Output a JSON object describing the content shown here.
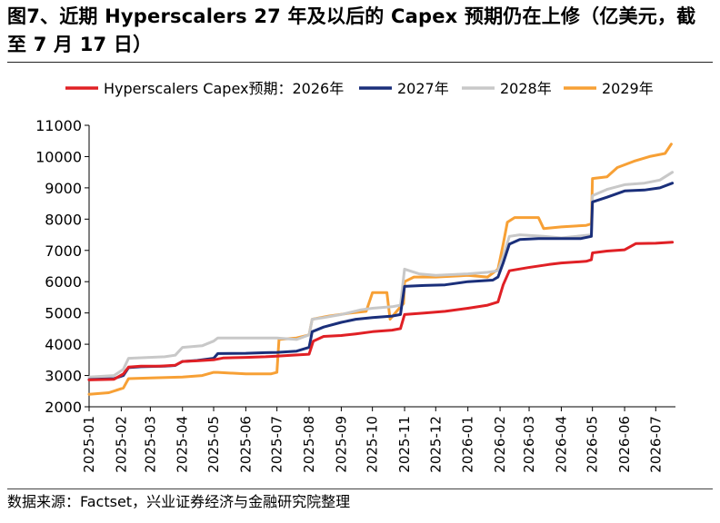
{
  "header": {
    "title": "图7、近期 Hyperscalers 27 年及以后的 Capex 预期仍在上修（亿美元，截至 7 月 17 日）"
  },
  "footer": {
    "source": "数据来源：Factset，兴业证券经济与金融研究院整理"
  },
  "colors": {
    "series_2026": "#e02025",
    "series_2027": "#1a2f7a",
    "series_2028": "#c8c8c8",
    "series_2029": "#f7a035",
    "axis": "#000000"
  },
  "chart_data": {
    "type": "line",
    "title": "",
    "xlabel": "",
    "ylabel": "",
    "x_type": "date",
    "xlim": [
      "2025-01-01",
      "2026-07-20"
    ],
    "ylim": [
      2000,
      11000
    ],
    "yticks": [
      2000,
      3000,
      4000,
      5000,
      6000,
      7000,
      8000,
      9000,
      10000,
      11000
    ],
    "xtick_labels": [
      "2025-01",
      "2025-02",
      "2025-03",
      "2025-04",
      "2025-05",
      "2025-06",
      "2025-07",
      "2025-08",
      "2025-09",
      "2025-10",
      "2025-11",
      "2025-12",
      "2026-01",
      "2026-02",
      "2026-03",
      "2026-04",
      "2026-05",
      "2026-06",
      "2026-07"
    ],
    "grid": false,
    "legend_position": "top",
    "series": [
      {
        "name": "Hyperscalers Capex预期：2026年",
        "color": "#e02025",
        "points": [
          [
            "2025-01-01",
            2860
          ],
          [
            "2025-01-25",
            2880
          ],
          [
            "2025-02-03",
            3050
          ],
          [
            "2025-02-08",
            3270
          ],
          [
            "2025-02-20",
            3300
          ],
          [
            "2025-03-10",
            3300
          ],
          [
            "2025-03-25",
            3330
          ],
          [
            "2025-04-01",
            3450
          ],
          [
            "2025-04-15",
            3470
          ],
          [
            "2025-05-01",
            3500
          ],
          [
            "2025-05-10",
            3560
          ],
          [
            "2025-06-01",
            3580
          ],
          [
            "2025-06-20",
            3600
          ],
          [
            "2025-07-01",
            3620
          ],
          [
            "2025-07-15",
            3650
          ],
          [
            "2025-08-01",
            3680
          ],
          [
            "2025-08-05",
            4100
          ],
          [
            "2025-08-15",
            4250
          ],
          [
            "2025-09-01",
            4280
          ],
          [
            "2025-09-15",
            4330
          ],
          [
            "2025-10-01",
            4400
          ],
          [
            "2025-10-20",
            4450
          ],
          [
            "2025-10-28",
            4500
          ],
          [
            "2025-11-01",
            4950
          ],
          [
            "2025-11-20",
            5000
          ],
          [
            "2025-12-10",
            5050
          ],
          [
            "2026-01-01",
            5150
          ],
          [
            "2026-01-20",
            5250
          ],
          [
            "2026-01-30",
            5350
          ],
          [
            "2026-02-04",
            5900
          ],
          [
            "2026-02-10",
            6350
          ],
          [
            "2026-02-28",
            6450
          ],
          [
            "2026-03-20",
            6550
          ],
          [
            "2026-04-01",
            6600
          ],
          [
            "2026-04-25",
            6650
          ],
          [
            "2026-04-30",
            6700
          ],
          [
            "2026-05-01",
            6920
          ],
          [
            "2026-05-15",
            6980
          ],
          [
            "2026-06-01",
            7020
          ],
          [
            "2026-06-12",
            7220
          ],
          [
            "2026-07-01",
            7230
          ],
          [
            "2026-07-17",
            7260
          ]
        ]
      },
      {
        "name": "2027年",
        "color": "#1a2f7a",
        "points": [
          [
            "2025-01-01",
            2870
          ],
          [
            "2025-01-25",
            2900
          ],
          [
            "2025-02-03",
            3000
          ],
          [
            "2025-02-08",
            3250
          ],
          [
            "2025-02-20",
            3280
          ],
          [
            "2025-03-15",
            3300
          ],
          [
            "2025-03-25",
            3320
          ],
          [
            "2025-04-01",
            3450
          ],
          [
            "2025-04-15",
            3480
          ],
          [
            "2025-05-01",
            3550
          ],
          [
            "2025-05-05",
            3700
          ],
          [
            "2025-06-01",
            3710
          ],
          [
            "2025-06-20",
            3730
          ],
          [
            "2025-07-01",
            3740
          ],
          [
            "2025-07-20",
            3780
          ],
          [
            "2025-08-01",
            3900
          ],
          [
            "2025-08-04",
            4400
          ],
          [
            "2025-08-15",
            4550
          ],
          [
            "2025-09-01",
            4700
          ],
          [
            "2025-09-15",
            4800
          ],
          [
            "2025-10-01",
            4850
          ],
          [
            "2025-10-20",
            4900
          ],
          [
            "2025-10-28",
            4950
          ],
          [
            "2025-11-01",
            5850
          ],
          [
            "2025-11-20",
            5880
          ],
          [
            "2025-12-10",
            5900
          ],
          [
            "2026-01-01",
            6000
          ],
          [
            "2026-01-25",
            6050
          ],
          [
            "2026-01-30",
            6150
          ],
          [
            "2026-02-04",
            6600
          ],
          [
            "2026-02-10",
            7200
          ],
          [
            "2026-02-20",
            7350
          ],
          [
            "2026-03-10",
            7380
          ],
          [
            "2026-04-01",
            7380
          ],
          [
            "2026-04-20",
            7380
          ],
          [
            "2026-04-30",
            7450
          ],
          [
            "2026-05-01",
            8550
          ],
          [
            "2026-05-15",
            8700
          ],
          [
            "2026-06-01",
            8900
          ],
          [
            "2026-06-20",
            8930
          ],
          [
            "2026-07-05",
            9000
          ],
          [
            "2026-07-17",
            9150
          ]
        ]
      },
      {
        "name": "2028年",
        "color": "#c8c8c8",
        "points": [
          [
            "2025-01-01",
            2950
          ],
          [
            "2025-01-25",
            3000
          ],
          [
            "2025-02-03",
            3200
          ],
          [
            "2025-02-08",
            3550
          ],
          [
            "2025-03-15",
            3600
          ],
          [
            "2025-03-25",
            3650
          ],
          [
            "2025-04-01",
            3900
          ],
          [
            "2025-04-20",
            3950
          ],
          [
            "2025-05-01",
            4100
          ],
          [
            "2025-05-05",
            4200
          ],
          [
            "2025-06-01",
            4200
          ],
          [
            "2025-07-01",
            4200
          ],
          [
            "2025-07-20",
            4150
          ],
          [
            "2025-08-01",
            4300
          ],
          [
            "2025-08-04",
            4800
          ],
          [
            "2025-08-15",
            4850
          ],
          [
            "2025-09-01",
            4950
          ],
          [
            "2025-09-20",
            5100
          ],
          [
            "2025-10-01",
            5150
          ],
          [
            "2025-10-20",
            5200
          ],
          [
            "2025-10-28",
            5250
          ],
          [
            "2025-11-01",
            6400
          ],
          [
            "2025-11-15",
            6250
          ],
          [
            "2025-12-01",
            6200
          ],
          [
            "2026-01-01",
            6250
          ],
          [
            "2026-01-20",
            6300
          ],
          [
            "2026-01-30",
            6350
          ],
          [
            "2026-02-04",
            6800
          ],
          [
            "2026-02-10",
            7450
          ],
          [
            "2026-02-20",
            7500
          ],
          [
            "2026-03-15",
            7450
          ],
          [
            "2026-04-01",
            7400
          ],
          [
            "2026-04-30",
            7500
          ],
          [
            "2026-05-01",
            8750
          ],
          [
            "2026-05-15",
            8950
          ],
          [
            "2026-06-01",
            9100
          ],
          [
            "2026-06-20",
            9150
          ],
          [
            "2026-07-05",
            9250
          ],
          [
            "2026-07-17",
            9500
          ]
        ]
      },
      {
        "name": "2029年",
        "color": "#f7a035",
        "points": [
          [
            "2025-01-01",
            2400
          ],
          [
            "2025-01-20",
            2450
          ],
          [
            "2025-02-03",
            2600
          ],
          [
            "2025-02-08",
            2900
          ],
          [
            "2025-03-01",
            2920
          ],
          [
            "2025-04-01",
            2950
          ],
          [
            "2025-04-20",
            3000
          ],
          [
            "2025-05-01",
            3100
          ],
          [
            "2025-05-05",
            3100
          ],
          [
            "2025-06-01",
            3050
          ],
          [
            "2025-06-25",
            3050
          ],
          [
            "2025-07-01",
            3100
          ],
          [
            "2025-07-03",
            4150
          ],
          [
            "2025-07-20",
            4200
          ],
          [
            "2025-08-01",
            4300
          ],
          [
            "2025-08-04",
            4800
          ],
          [
            "2025-08-20",
            4900
          ],
          [
            "2025-09-10",
            5000
          ],
          [
            "2025-09-25",
            5050
          ],
          [
            "2025-10-01",
            5650
          ],
          [
            "2025-10-15",
            5650
          ],
          [
            "2025-10-18",
            4800
          ],
          [
            "2025-10-28",
            5200
          ],
          [
            "2025-10-31",
            5300
          ],
          [
            "2025-11-01",
            6000
          ],
          [
            "2025-11-10",
            6150
          ],
          [
            "2025-12-01",
            6150
          ],
          [
            "2026-01-01",
            6200
          ],
          [
            "2026-01-20",
            6150
          ],
          [
            "2026-01-30",
            6400
          ],
          [
            "2026-02-04",
            7200
          ],
          [
            "2026-02-08",
            7900
          ],
          [
            "2026-02-15",
            8050
          ],
          [
            "2026-03-10",
            8050
          ],
          [
            "2026-03-15",
            7700
          ],
          [
            "2026-04-01",
            7750
          ],
          [
            "2026-04-25",
            7800
          ],
          [
            "2026-04-30",
            7850
          ],
          [
            "2026-05-01",
            9300
          ],
          [
            "2026-05-15",
            9350
          ],
          [
            "2026-05-25",
            9650
          ],
          [
            "2026-06-10",
            9850
          ],
          [
            "2026-06-25",
            10000
          ],
          [
            "2026-07-10",
            10100
          ],
          [
            "2026-07-16",
            10400
          ]
        ]
      }
    ]
  }
}
